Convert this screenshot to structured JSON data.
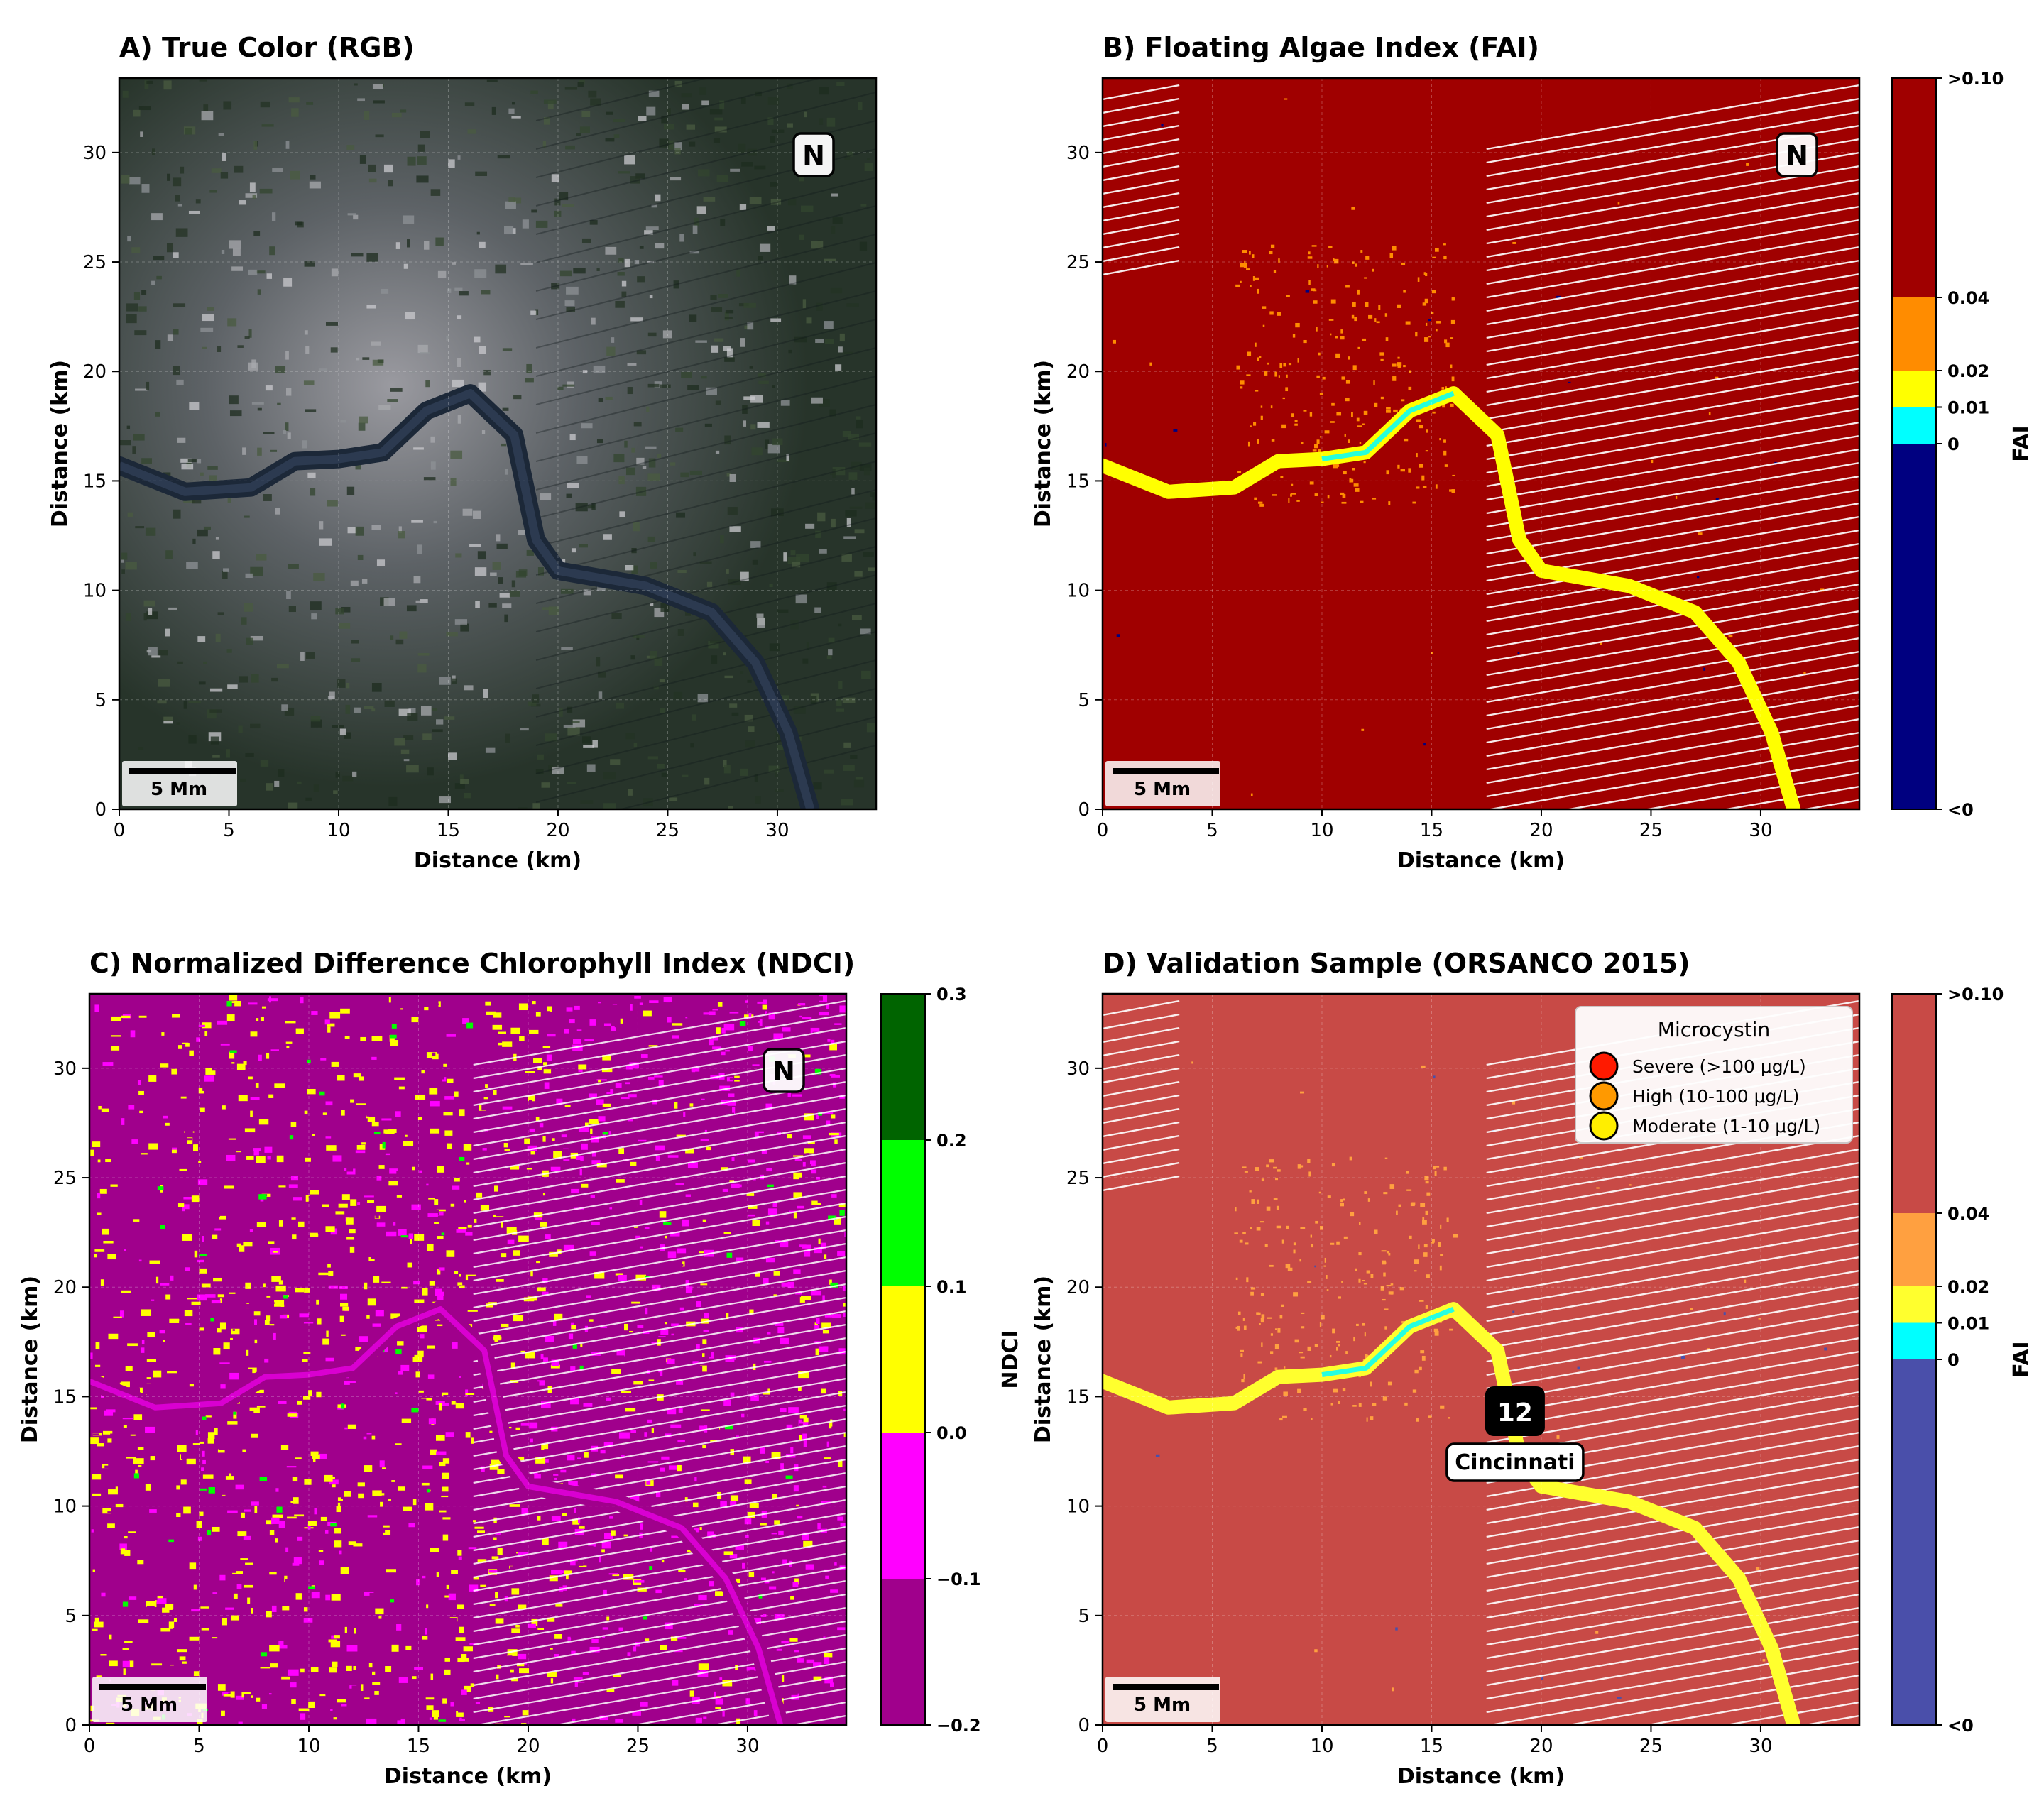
{
  "colors": {
    "fai": [
      "#000080",
      "#00ffff",
      "#ffff00",
      "#ff8c00",
      "#a00000"
    ],
    "fai_muted": [
      "#4a4faa",
      "#00ffff",
      "#ffff2e",
      "#ffa040",
      "#c84a46"
    ],
    "ndci": [
      "#a0008c",
      "#ff00ff",
      "#ffff00",
      "#00ff00",
      "#006400"
    ],
    "rgb_ground": "#27342a",
    "river_rgb": "#1c2838"
  },
  "chart_data": [
    {
      "type": "heatmap",
      "panel": "A",
      "title": "A) True Color (RGB)",
      "xlabel": "Distance (km)",
      "ylabel": "Distance (km)",
      "xlim": [
        0,
        34.5
      ],
      "ylim": [
        0,
        33.4
      ],
      "xticks": [
        0,
        5,
        10,
        15,
        20,
        25,
        30
      ],
      "yticks": [
        0,
        5,
        10,
        15,
        20,
        25,
        30
      ],
      "north_arrow": "N",
      "scale_bar": "5 Mm",
      "river_km": [
        [
          0,
          15.7
        ],
        [
          3,
          14.5
        ],
        [
          6,
          14.7
        ],
        [
          8,
          15.9
        ],
        [
          10,
          16.0
        ],
        [
          12,
          16.3
        ],
        [
          14,
          18.2
        ],
        [
          16,
          19.0
        ],
        [
          18,
          17.1
        ],
        [
          19,
          12.3
        ],
        [
          20,
          10.9
        ],
        [
          24,
          10.2
        ],
        [
          27,
          9.0
        ],
        [
          29,
          6.7
        ],
        [
          30.5,
          3.5
        ],
        [
          31.5,
          0
        ]
      ]
    },
    {
      "type": "heatmap",
      "panel": "B",
      "title": "B) Floating Algae Index (FAI)",
      "xlabel": "Distance (km)",
      "ylabel": "Distance (km)",
      "xlim": [
        0,
        34.5
      ],
      "ylim": [
        0,
        33.4
      ],
      "xticks": [
        0,
        5,
        10,
        15,
        20,
        25,
        30
      ],
      "yticks": [
        0,
        5,
        10,
        15,
        20,
        25,
        30
      ],
      "north_arrow": "N",
      "scale_bar": "5 Mm",
      "colorbar": {
        "label": "FAI",
        "boundaries": [
          -0.1,
          0,
          0.01,
          0.02,
          0.04,
          0.1
        ],
        "tick_labels": [
          "<0",
          "0",
          "0.01",
          "0.02",
          "0.04",
          ">0.10"
        ]
      }
    },
    {
      "type": "heatmap",
      "panel": "C",
      "title": "C) Normalized Difference Chlorophyll Index (NDCI)",
      "xlabel": "Distance (km)",
      "ylabel": "Distance (km)",
      "xlim": [
        0,
        34.5
      ],
      "ylim": [
        0,
        33.4
      ],
      "xticks": [
        0,
        5,
        10,
        15,
        20,
        25,
        30
      ],
      "yticks": [
        0,
        5,
        10,
        15,
        20,
        25,
        30
      ],
      "north_arrow": "N",
      "scale_bar": "5 Mm",
      "colorbar": {
        "label": "NDCI",
        "boundaries": [
          -0.2,
          -0.1,
          0.0,
          0.1,
          0.2,
          0.3
        ],
        "tick_labels": [
          "−0.2",
          "−0.1",
          "0.0",
          "0.1",
          "0.2",
          "0.3"
        ]
      }
    },
    {
      "type": "heatmap",
      "panel": "D",
      "title": "D) Validation Sample (ORSANCO 2015)",
      "xlabel": "Distance (km)",
      "ylabel": "Distance (km)",
      "xlim": [
        0,
        34.5
      ],
      "ylim": [
        0,
        33.4
      ],
      "xticks": [
        0,
        5,
        10,
        15,
        20,
        25,
        30
      ],
      "yticks": [
        0,
        5,
        10,
        15,
        20,
        25,
        30
      ],
      "scale_bar": "5 Mm",
      "legend": {
        "title": "Microcystin",
        "position": "top-right",
        "entries": [
          {
            "label": "Severe (>100 μg/L)",
            "color": "#ff1a00"
          },
          {
            "label": "High (10-100 μg/L)",
            "color": "#ff9900"
          },
          {
            "label": "Moderate (1-10 μg/L)",
            "color": "#ffee00"
          }
        ]
      },
      "sample": {
        "label": "12",
        "x_km": 18.8,
        "y_km": 14.3
      },
      "site": {
        "label": "Cincinnati",
        "x_km": 18.8,
        "y_km": 12.0
      },
      "colorbar": {
        "label": "FAI",
        "boundaries": [
          -0.1,
          0,
          0.01,
          0.02,
          0.04,
          0.1
        ],
        "tick_labels": [
          "<0",
          "0",
          "0.01",
          "0.02",
          "0.04",
          ">0.10"
        ]
      }
    }
  ]
}
